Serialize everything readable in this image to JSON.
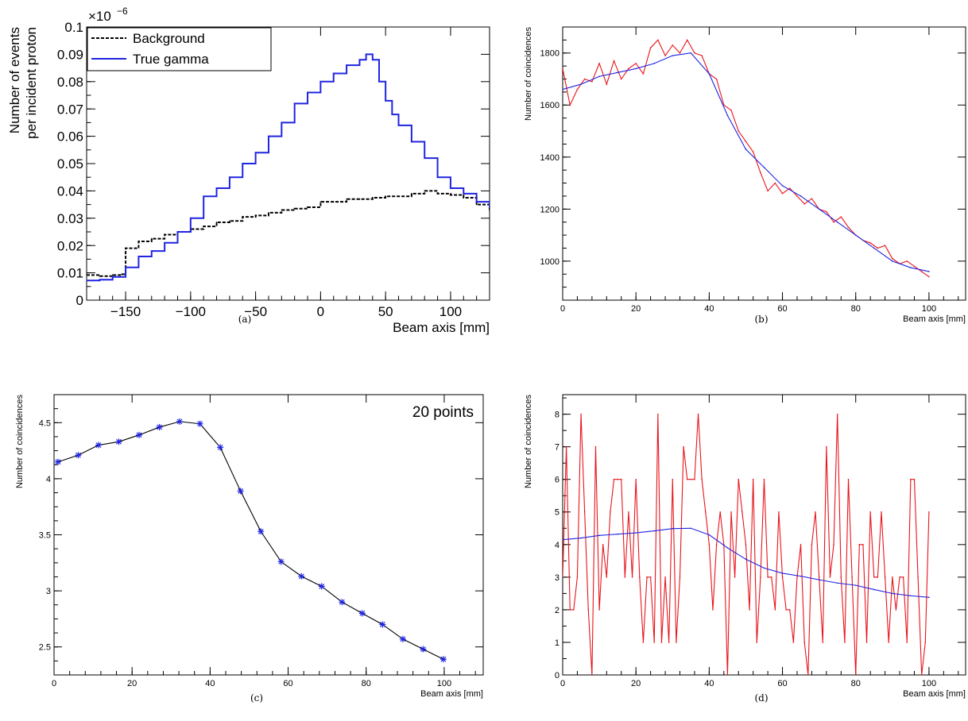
{
  "chart_data": [
    {
      "panel_label": "(a)",
      "type": "line",
      "step": true,
      "xlabel": "Beam axis [mm]",
      "ylabel": [
        "Number of events",
        "per incident proton"
      ],
      "exponent_label": "×10",
      "exponent": "−6",
      "xlim": [
        -180,
        130
      ],
      "ylim": [
        0,
        0.1
      ],
      "xticks": [
        -150,
        -100,
        -50,
        0,
        50,
        100
      ],
      "yticks": [
        0,
        0.01,
        0.02,
        0.03,
        0.04,
        0.05,
        0.06,
        0.07,
        0.08,
        0.09,
        0.1
      ],
      "legend": {
        "position": "top-left"
      },
      "series": [
        {
          "name": "Background",
          "color": "#000000",
          "dash": true,
          "x": [
            -180,
            -170,
            -160,
            -153,
            -150,
            -140,
            -130,
            -120,
            -110,
            -100,
            -90,
            -80,
            -70,
            -60,
            -50,
            -40,
            -30,
            -20,
            -10,
            0,
            10,
            20,
            30,
            40,
            50,
            60,
            70,
            80,
            90,
            100,
            110,
            120,
            130
          ],
          "values": [
            0.0092,
            0.0088,
            0.0092,
            0.0095,
            0.019,
            0.0215,
            0.0225,
            0.024,
            0.025,
            0.026,
            0.027,
            0.0285,
            0.029,
            0.0305,
            0.031,
            0.032,
            0.033,
            0.0335,
            0.034,
            0.036,
            0.036,
            0.037,
            0.037,
            0.0375,
            0.038,
            0.038,
            0.039,
            0.04,
            0.039,
            0.0385,
            0.0375,
            0.035,
            0.033
          ]
        },
        {
          "name": "True gamma",
          "color": "#1f24e0",
          "dash": false,
          "x": [
            -180,
            -170,
            -160,
            -150,
            -140,
            -130,
            -120,
            -110,
            -100,
            -90,
            -80,
            -70,
            -60,
            -50,
            -40,
            -30,
            -20,
            -10,
            0,
            10,
            20,
            30,
            35,
            40,
            45,
            50,
            55,
            60,
            70,
            80,
            90,
            100,
            110,
            120,
            130
          ],
          "values": [
            0.0072,
            0.0075,
            0.0085,
            0.012,
            0.016,
            0.018,
            0.021,
            0.025,
            0.03,
            0.038,
            0.041,
            0.045,
            0.05,
            0.054,
            0.06,
            0.065,
            0.072,
            0.076,
            0.08,
            0.083,
            0.086,
            0.088,
            0.09,
            0.088,
            0.08,
            0.073,
            0.068,
            0.064,
            0.058,
            0.052,
            0.045,
            0.041,
            0.039,
            0.036,
            0.034
          ]
        }
      ]
    },
    {
      "panel_label": "(b)",
      "type": "line",
      "xlabel": "Beam axis [mm]",
      "ylabel": "Number of coincidences",
      "xlim": [
        0,
        110
      ],
      "ylim": [
        850,
        1900
      ],
      "xticks": [
        0,
        20,
        40,
        60,
        80,
        100
      ],
      "yticks": [
        1000,
        1200,
        1400,
        1600,
        1800
      ],
      "series": [
        {
          "name": "",
          "color": "#e8141b",
          "x": [
            0,
            2,
            4,
            6,
            8,
            10,
            12,
            14,
            16,
            18,
            20,
            22,
            24,
            26,
            28,
            30,
            32,
            34,
            36,
            38,
            40,
            42,
            44,
            46,
            48,
            50,
            52,
            54,
            56,
            58,
            60,
            62,
            64,
            66,
            68,
            70,
            72,
            74,
            76,
            78,
            80,
            82,
            84,
            86,
            88,
            90,
            92,
            94,
            96,
            98,
            100
          ],
          "values": [
            1740,
            1600,
            1660,
            1700,
            1690,
            1760,
            1680,
            1770,
            1700,
            1740,
            1760,
            1720,
            1820,
            1850,
            1790,
            1830,
            1800,
            1850,
            1800,
            1790,
            1720,
            1700,
            1600,
            1580,
            1500,
            1460,
            1420,
            1340,
            1270,
            1300,
            1260,
            1280,
            1250,
            1220,
            1240,
            1200,
            1190,
            1150,
            1170,
            1130,
            1100,
            1080,
            1070,
            1050,
            1060,
            1010,
            990,
            1000,
            980,
            960,
            940
          ]
        },
        {
          "name": "",
          "color": "#1f24e0",
          "x": [
            0,
            5,
            10,
            15,
            20,
            25,
            30,
            35,
            40,
            45,
            50,
            55,
            60,
            65,
            70,
            75,
            80,
            85,
            90,
            95,
            100
          ],
          "values": [
            1660,
            1680,
            1710,
            1725,
            1740,
            1760,
            1790,
            1800,
            1720,
            1560,
            1430,
            1360,
            1290,
            1250,
            1200,
            1150,
            1100,
            1050,
            1000,
            975,
            960
          ]
        }
      ]
    },
    {
      "panel_label": "(c)",
      "type": "scatter",
      "annotation": "20 points",
      "xlabel": "Beam axis [mm]",
      "ylabel": "Number of coincidences",
      "xlim": [
        0,
        110
      ],
      "ylim": [
        2.25,
        4.75
      ],
      "xticks": [
        0,
        20,
        40,
        60,
        80,
        100
      ],
      "yticks": [
        2.5,
        3,
        3.5,
        4,
        4.5
      ],
      "series": [
        {
          "name": "",
          "color": "#1f24e0",
          "marker": "star",
          "line_color": "#000000",
          "x": [
            1,
            6.2,
            11.4,
            16.6,
            21.8,
            27,
            32.2,
            37.4,
            42.6,
            47.8,
            53,
            58.2,
            63.4,
            68.6,
            73.8,
            79,
            84.2,
            89.4,
            94.6,
            99.8
          ],
          "values": [
            4.15,
            4.21,
            4.3,
            4.33,
            4.39,
            4.46,
            4.51,
            4.49,
            4.28,
            3.89,
            3.53,
            3.26,
            3.13,
            3.04,
            2.9,
            2.8,
            2.7,
            2.57,
            2.48,
            2.39
          ]
        }
      ]
    },
    {
      "panel_label": "(d)",
      "type": "line",
      "xlabel": "Beam axis [mm]",
      "ylabel": "Number of coincidences",
      "xlim": [
        0,
        110
      ],
      "ylim": [
        0,
        8.6
      ],
      "xticks": [
        0,
        20,
        40,
        60,
        80,
        100
      ],
      "yticks": [
        0,
        1,
        2,
        3,
        4,
        5,
        6,
        7,
        8
      ],
      "series": [
        {
          "name": "",
          "color": "#e8141b",
          "x": [
            0,
            1,
            2,
            3,
            4,
            5,
            6,
            7,
            8,
            9,
            10,
            11,
            12,
            13,
            14,
            15,
            16,
            17,
            18,
            19,
            20,
            21,
            22,
            23,
            24,
            25,
            26,
            27,
            28,
            29,
            30,
            31,
            32,
            33,
            34,
            35,
            36,
            37,
            38,
            39,
            40,
            41,
            42,
            43,
            44,
            45,
            46,
            47,
            48,
            49,
            50,
            51,
            52,
            53,
            54,
            55,
            56,
            57,
            58,
            59,
            60,
            61,
            62,
            63,
            64,
            65,
            66,
            67,
            68,
            69,
            70,
            71,
            72,
            73,
            74,
            75,
            76,
            77,
            78,
            79,
            80,
            81,
            82,
            83,
            84,
            85,
            86,
            87,
            88,
            89,
            90,
            91,
            92,
            93,
            94,
            95,
            96,
            97,
            98,
            99,
            100
          ],
          "values": [
            3,
            7,
            2,
            2,
            3,
            8,
            5,
            2,
            0,
            7,
            2,
            4,
            3,
            5,
            6,
            6,
            6,
            3,
            5,
            3,
            6,
            3,
            1,
            3,
            3,
            1,
            8,
            1,
            3,
            1,
            6,
            1,
            3,
            7,
            6,
            6,
            6,
            8,
            6,
            5,
            4,
            2,
            4,
            5,
            4,
            0,
            5,
            3,
            6,
            5,
            4,
            2,
            6,
            1,
            3,
            6,
            3,
            3,
            2,
            5,
            3,
            2,
            2,
            1,
            3,
            4,
            1,
            0,
            4,
            5,
            3,
            1,
            7,
            3,
            4,
            8,
            3,
            1,
            6,
            3,
            0,
            4,
            4,
            1,
            5,
            3,
            3,
            5,
            3,
            1,
            3,
            2,
            3,
            3,
            1,
            6,
            6,
            3,
            0,
            1,
            5
          ]
        },
        {
          "name": "",
          "color": "#1f24e0",
          "x": [
            0,
            5,
            10,
            15,
            20,
            25,
            30,
            35,
            40,
            45,
            50,
            55,
            60,
            65,
            70,
            75,
            80,
            85,
            90,
            95,
            100
          ],
          "values": [
            4.15,
            4.2,
            4.28,
            4.32,
            4.36,
            4.42,
            4.49,
            4.5,
            4.3,
            3.9,
            3.55,
            3.28,
            3.12,
            3.03,
            2.92,
            2.82,
            2.75,
            2.62,
            2.5,
            2.43,
            2.38
          ]
        }
      ]
    }
  ]
}
